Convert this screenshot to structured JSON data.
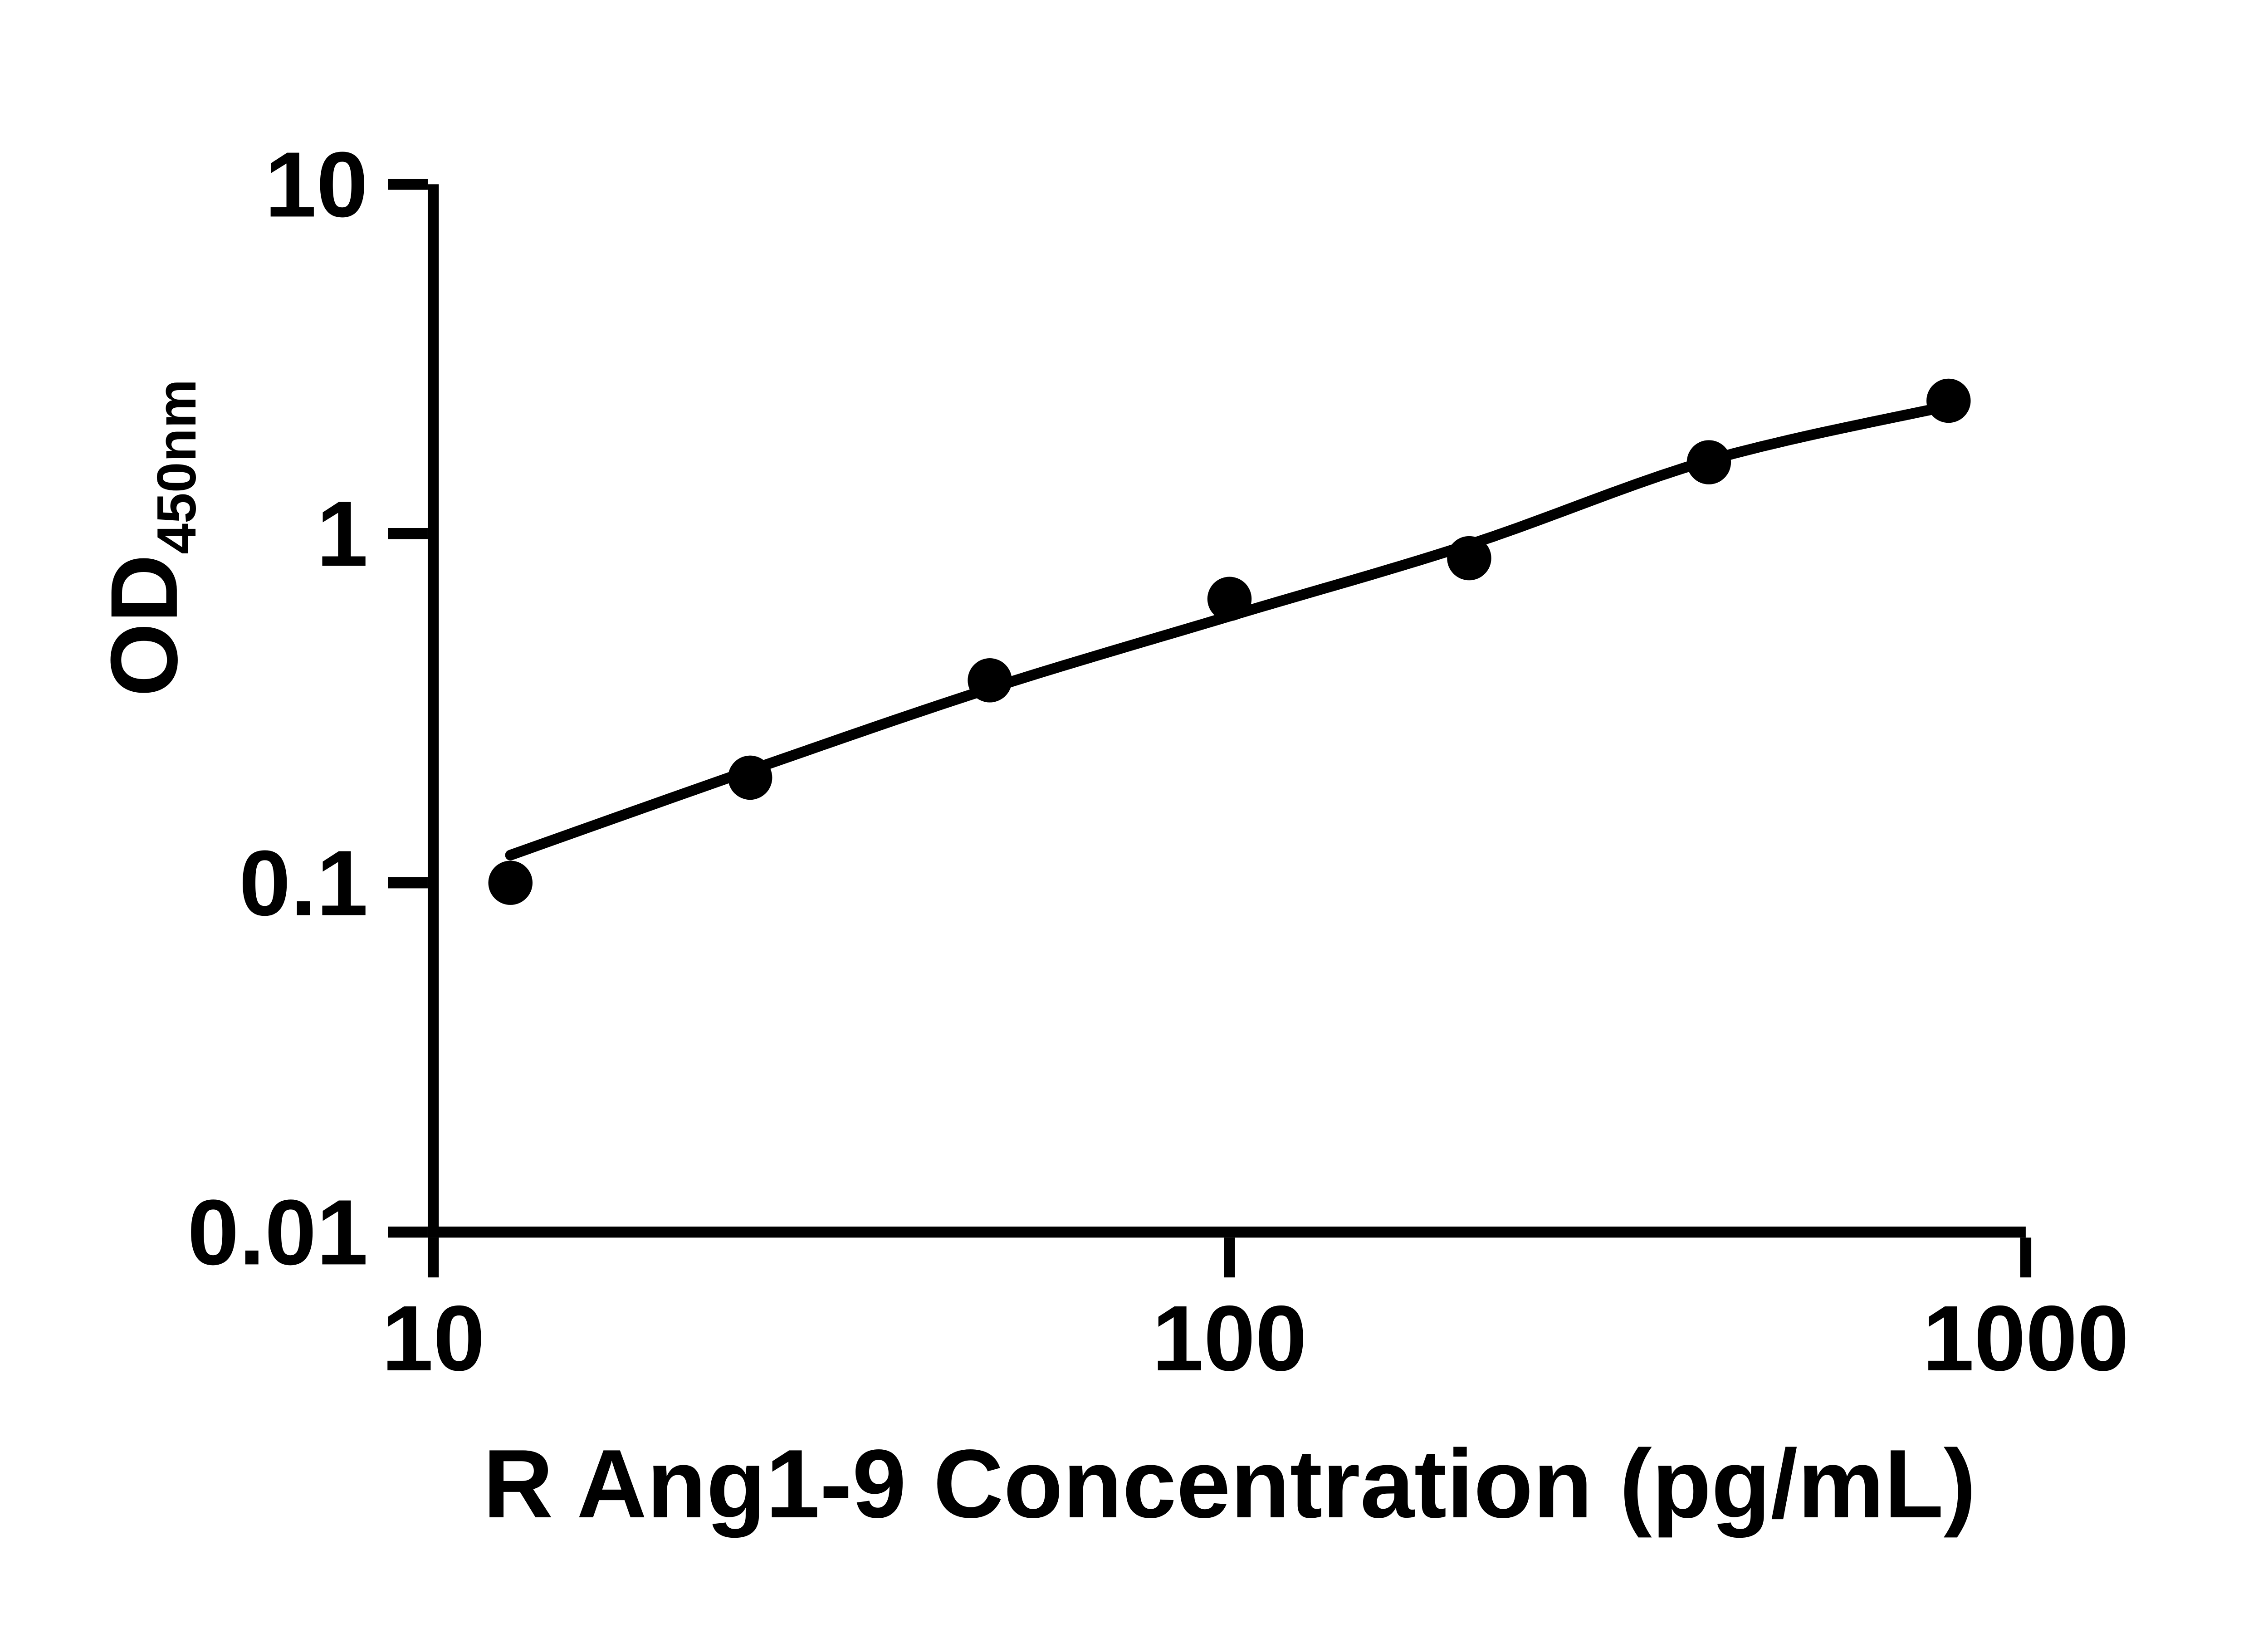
{
  "figure": {
    "background_color": "#ffffff",
    "ink_color": "#000000"
  },
  "chart_data": {
    "type": "scatter",
    "title": "",
    "xlabel": "R Ang1-9 Concentration (pg/mL)",
    "ylabel_main": "OD",
    "ylabel_sub": "450nm",
    "x_scale": "log10",
    "y_scale": "log10",
    "xlim": [
      10,
      1000
    ],
    "ylim": [
      0.01,
      10
    ],
    "grid": false,
    "legend": "none",
    "x_ticks": [
      {
        "value": 10,
        "label": "10"
      },
      {
        "value": 100,
        "label": "100"
      },
      {
        "value": 1000,
        "label": "1000"
      }
    ],
    "y_ticks": [
      {
        "value": 10,
        "label": "10"
      },
      {
        "value": 1,
        "label": "1"
      },
      {
        "value": 0.1,
        "label": "0.1"
      },
      {
        "value": 0.01,
        "label": "0.01"
      }
    ],
    "series": [
      {
        "name": "standard-points",
        "role": "scatter",
        "marker": "filled-circle",
        "color": "#000000",
        "points": [
          {
            "x": 12.5,
            "y": 0.1
          },
          {
            "x": 25,
            "y": 0.2
          },
          {
            "x": 50,
            "y": 0.38
          },
          {
            "x": 100,
            "y": 0.65
          },
          {
            "x": 200,
            "y": 0.85
          },
          {
            "x": 400,
            "y": 1.6
          },
          {
            "x": 800,
            "y": 2.4
          }
        ]
      },
      {
        "name": "fit-line",
        "role": "fit-curve",
        "marker": "none",
        "color": "#000000",
        "points": [
          {
            "x": 12.5,
            "y": 0.12
          },
          {
            "x": 25,
            "y": 0.21
          },
          {
            "x": 50,
            "y": 0.36
          },
          {
            "x": 100,
            "y": 0.58
          },
          {
            "x": 200,
            "y": 0.93
          },
          {
            "x": 400,
            "y": 1.62
          },
          {
            "x": 800,
            "y": 2.32
          }
        ]
      }
    ]
  }
}
